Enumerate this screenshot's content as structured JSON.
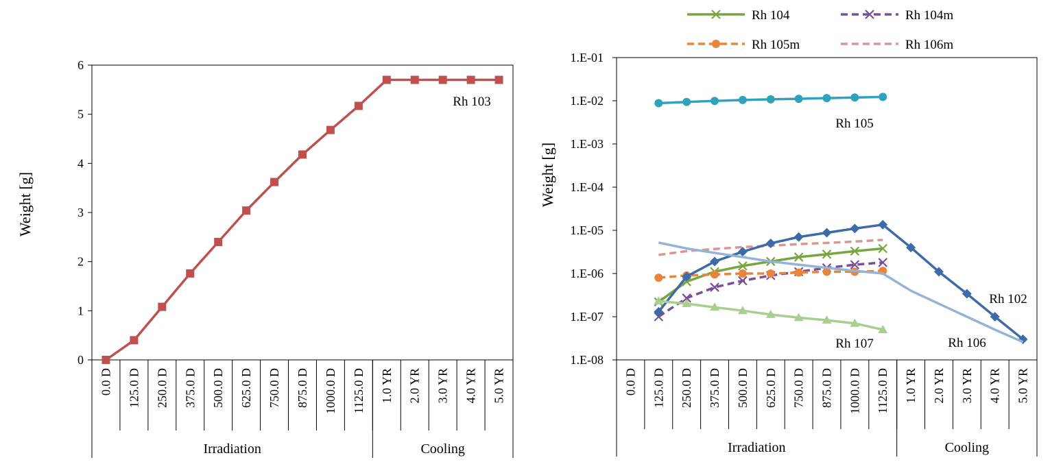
{
  "chart_data": [
    {
      "type": "line",
      "title": "",
      "ylabel": "Weight [g]",
      "xlabel": "",
      "ylim": [
        0,
        6
      ],
      "yticks": [
        "0",
        "1",
        "2",
        "3",
        "4",
        "5",
        "6"
      ],
      "categories": [
        "0.0 D",
        "125.0 D",
        "250.0 D",
        "375.0 D",
        "500.0 D",
        "625.0 D",
        "750.0 D",
        "875.0 D",
        "1000.0 D",
        "1125.0 D",
        "1.0 YR",
        "2.0 YR",
        "3.0 YR",
        "4.0 YR",
        "5.0 YR"
      ],
      "groups": [
        {
          "label": "Irradiation",
          "count": 10
        },
        {
          "label": "Cooling",
          "count": 5
        }
      ],
      "series": [
        {
          "name": "Rh 103",
          "color": "#c0504d",
          "marker": "square",
          "values": [
            0,
            0.4,
            1.08,
            1.76,
            2.4,
            3.04,
            3.62,
            4.18,
            4.68,
            5.17,
            5.7,
            5.7,
            5.7,
            5.7,
            5.7
          ]
        }
      ],
      "annotations": [
        {
          "text": "Rh 103",
          "series": "Rh 103"
        }
      ]
    },
    {
      "type": "line",
      "title": "",
      "ylabel": "Weight [g]",
      "xlabel": "",
      "yscale": "log",
      "ylim": [
        1e-08,
        0.1
      ],
      "yticks": [
        "1.E-08",
        "1.E-07",
        "1.E-06",
        "1.E-05",
        "1.E-04",
        "1.E-03",
        "1.E-02",
        "1.E-01"
      ],
      "categories": [
        "0.0 D",
        "125.0 D",
        "250.0 D",
        "375.0 D",
        "500.0 D",
        "625.0 D",
        "750.0 D",
        "875.0 D",
        "1000.0 D",
        "1125.0 D",
        "1.0 YR",
        "2.0 YR",
        "3.0 YR",
        "4.0 YR",
        "5.0 YR"
      ],
      "groups": [
        {
          "label": "Irradiation",
          "count": 10
        },
        {
          "label": "Cooling",
          "count": 5
        }
      ],
      "legend": {
        "position": "top"
      },
      "series": [
        {
          "name": "Rh 104",
          "color": "#77a640",
          "marker": "x",
          "dash": false,
          "in_legend": true,
          "values": [
            null,
            2.2e-07,
            6.5e-07,
            1.1e-06,
            1.5e-06,
            1.9e-06,
            2.4e-06,
            2.8e-06,
            3.3e-06,
            3.8e-06,
            null,
            null,
            null,
            null,
            null
          ]
        },
        {
          "name": "Rh 104m",
          "color": "#7a4f9a",
          "marker": "x",
          "dash": true,
          "in_legend": true,
          "values": [
            null,
            1e-07,
            2.7e-07,
            4.8e-07,
            6.8e-07,
            9e-07,
            1.1e-06,
            1.35e-06,
            1.6e-06,
            1.8e-06,
            null,
            null,
            null,
            null,
            null
          ]
        },
        {
          "name": "Rh 105m",
          "color": "#e8843c",
          "marker": "circle",
          "dash": true,
          "in_legend": true,
          "values": [
            null,
            8e-07,
            9e-07,
            9.5e-07,
            1e-06,
            1e-06,
            1.05e-06,
            1.1e-06,
            1.1e-06,
            1.15e-06,
            null,
            null,
            null,
            null,
            null
          ]
        },
        {
          "name": "Rh 106m",
          "color": "#d99694",
          "marker": "none",
          "dash": true,
          "in_legend": true,
          "values": [
            null,
            2.7e-06,
            3.3e-06,
            3.7e-06,
            4.1e-06,
            4.4e-06,
            4.8e-06,
            5.1e-06,
            5.5e-06,
            6e-06,
            null,
            null,
            null,
            null,
            null
          ]
        },
        {
          "name": "Rh 105",
          "color": "#31a2bd",
          "marker": "circle",
          "dash": false,
          "in_legend": false,
          "values": [
            null,
            0.0088,
            0.0094,
            0.0099,
            0.0104,
            0.0108,
            0.0111,
            0.0115,
            0.0119,
            0.0123,
            null,
            null,
            null,
            null,
            null
          ]
        },
        {
          "name": "Rh 102",
          "color": "#3d6aa9",
          "marker": "diamond",
          "dash": false,
          "in_legend": false,
          "values": [
            null,
            1.3e-07,
            8.5e-07,
            1.9e-06,
            3.2e-06,
            5e-06,
            7e-06,
            8.8e-06,
            1.1e-05,
            1.35e-05,
            4e-06,
            1.1e-06,
            3.4e-07,
            1e-07,
            3e-08
          ]
        },
        {
          "name": "Rh 106",
          "color": "#95b3d7",
          "marker": "none",
          "dash": false,
          "in_legend": false,
          "values": [
            null,
            5.2e-06,
            3.8e-06,
            3e-06,
            2.4e-06,
            1.9e-06,
            1.6e-06,
            1.35e-06,
            1.15e-06,
            1e-06,
            4e-07,
            2e-07,
            1e-07,
            5e-08,
            2.6e-08
          ]
        },
        {
          "name": "Rh 107",
          "color": "#a9cf8e",
          "marker": "triangle",
          "dash": false,
          "in_legend": false,
          "values": [
            null,
            2.3e-07,
            2e-07,
            1.65e-07,
            1.38e-07,
            1.12e-07,
            9.5e-08,
            8.3e-08,
            7e-08,
            5e-08,
            null,
            null,
            null,
            null,
            null
          ]
        }
      ],
      "annotations": [
        {
          "text": "Rh 105",
          "series": "Rh 105"
        },
        {
          "text": "Rh 102",
          "series": "Rh 102"
        },
        {
          "text": "Rh 106",
          "series": "Rh 106"
        },
        {
          "text": "Rh 107",
          "series": "Rh 107"
        }
      ]
    }
  ]
}
